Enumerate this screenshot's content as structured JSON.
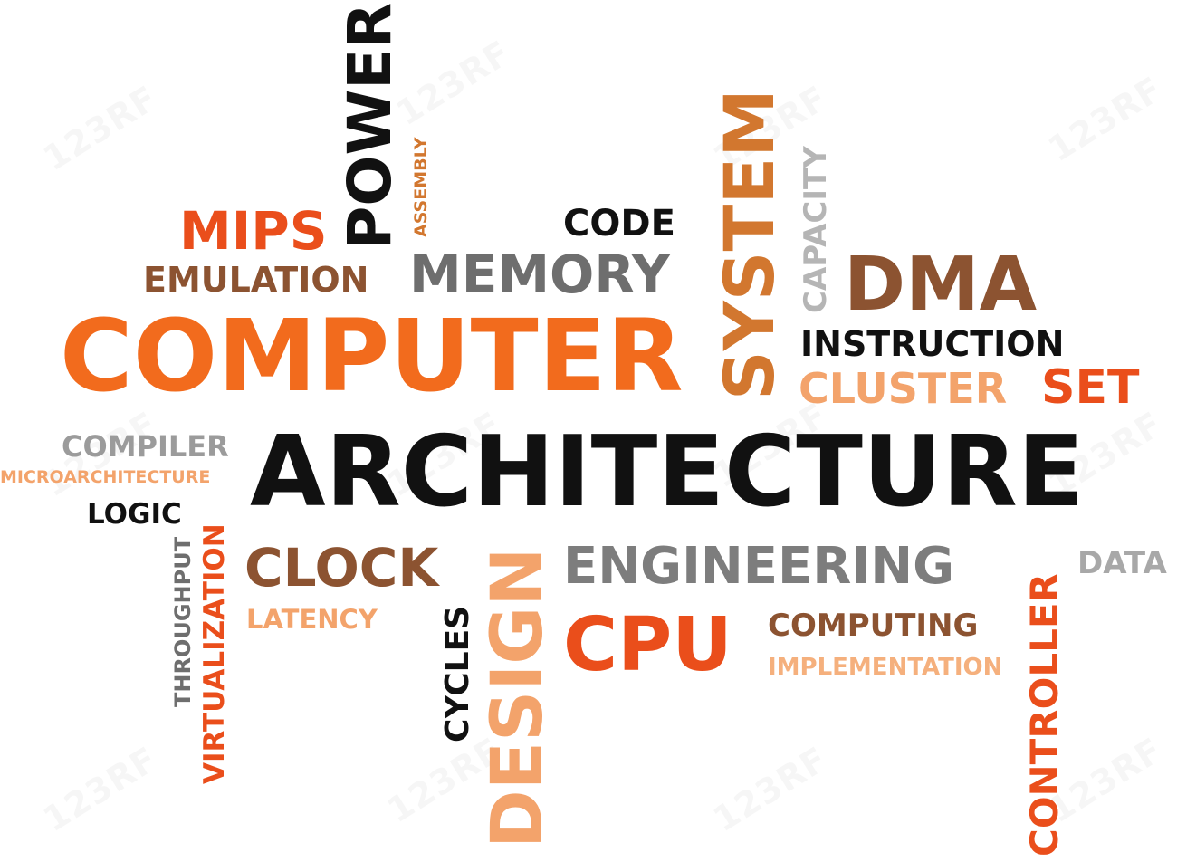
{
  "words": {
    "computer": "COMPUTER",
    "architecture": "ARCHITECTURE",
    "power": "POWER",
    "assembly": "ASSEMBLY",
    "mips": "MIPS",
    "code": "CODE",
    "memory": "MEMORY",
    "emulation": "EMULATION",
    "system": "SYSTEM",
    "capacity": "CAPACITY",
    "dma": "DMA",
    "instruction": "INSTRUCTION",
    "cluster": "CLUSTER",
    "set": "SET",
    "compiler": "COMPILER",
    "microarchitecture": "MICROARCHITECTURE",
    "logic": "LOGIC",
    "throughput": "THROUGHPUT",
    "virtualization": "VIRTUALIZATION",
    "clock": "CLOCK",
    "latency": "LATENCY",
    "design": "DESIGN",
    "cycles": "CYCLES",
    "engineering": "ENGINEERING",
    "cpu": "CPU",
    "computing": "COMPUTING",
    "implementation": "IMPLEMENTATION",
    "controller": "CONTROLLER",
    "data": "DATA"
  },
  "watermark": "123RF",
  "colors": {
    "orange": "#f26b1d",
    "red": "#ea4e1b",
    "brown": "#8c5331",
    "gray": "#6e6e6e",
    "light_gray": "#b5b5b5",
    "black": "#111111",
    "peach": "#f3a36b"
  }
}
